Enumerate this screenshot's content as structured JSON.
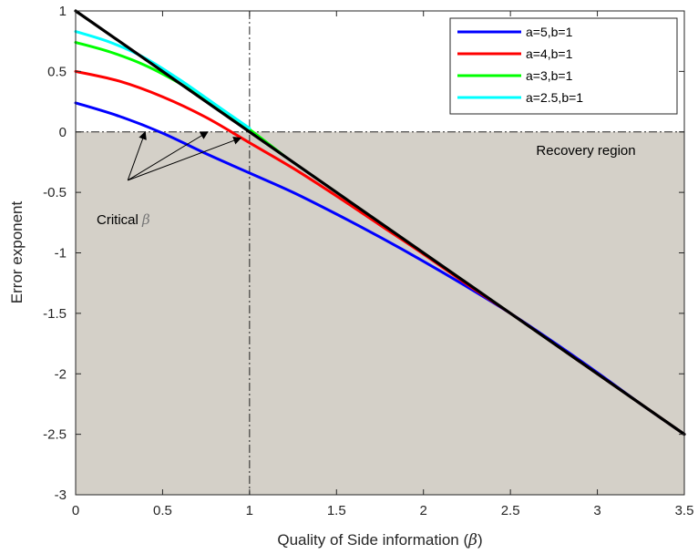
{
  "chart_data": {
    "type": "line",
    "title": "",
    "xlabel": "Quality of Side information (",
    "xlabel_symbol": "β",
    "xlabel_suffix": ")",
    "ylabel": "Error exponent",
    "xlim": [
      0,
      3.5
    ],
    "ylim": [
      -3,
      1
    ],
    "x_ticks": [
      "0",
      "0.5",
      "1",
      "1.5",
      "2",
      "2.5",
      "3",
      "3.5"
    ],
    "y_ticks": [
      "1",
      "0.5",
      "0",
      "-0.5",
      "-1",
      "-1.5",
      "-2",
      "-2.5",
      "-3"
    ],
    "grid": false,
    "legend_position": "top-right",
    "series": [
      {
        "name": "a=5,b=1",
        "color": "#0000ff",
        "x": [
          0,
          0.25,
          0.5,
          0.75,
          1,
          1.25,
          1.5,
          1.75,
          2,
          2.25,
          2.5,
          2.75,
          3,
          3.25,
          3.5
        ],
        "y": [
          0.24,
          0.13,
          -0.01,
          -0.18,
          -0.34,
          -0.5,
          -0.68,
          -0.87,
          -1.07,
          -1.28,
          -1.5,
          -1.74,
          -1.99,
          -2.25,
          -2.5
        ]
      },
      {
        "name": "a=4,b=1",
        "color": "#ff0000",
        "x": [
          0,
          0.25,
          0.5,
          0.75,
          1,
          1.25,
          1.5,
          1.75,
          2,
          2.25,
          2.5,
          2.75,
          3,
          3.25,
          3.5
        ],
        "y": [
          0.5,
          0.42,
          0.29,
          0.12,
          -0.09,
          -0.3,
          -0.53,
          -0.77,
          -1.01,
          -1.26,
          -1.5,
          -1.75,
          -2.0,
          -2.25,
          -2.5
        ]
      },
      {
        "name": "a=3,b=1",
        "color": "#00ff00",
        "x": [
          0,
          0.2,
          0.4,
          0.6,
          0.8,
          1,
          1.2
        ],
        "y": [
          0.74,
          0.66,
          0.55,
          0.4,
          0.22,
          0.02,
          -0.2
        ]
      },
      {
        "name": "a=2.5,b=1",
        "color": "#00ffff",
        "x": [
          0,
          0.2,
          0.4,
          0.6,
          0.8,
          1
        ],
        "y": [
          0.83,
          0.74,
          0.61,
          0.43,
          0.23,
          0.03
        ]
      },
      {
        "name": "",
        "color": "#000000",
        "x": [
          0,
          3.5
        ],
        "y": [
          1,
          -2.5
        ]
      }
    ],
    "reference_lines": {
      "vertical_x": 1,
      "horizontal_y": 0
    },
    "region": {
      "label": "Recovery region",
      "y_from": -3,
      "y_to": 0,
      "color": "#d4d0c8"
    },
    "annotation": {
      "text": "Critical",
      "symbol": "β",
      "arrow_tips": [
        {
          "x": 0.4,
          "y": 0.0
        },
        {
          "x": 0.76,
          "y": 0.0
        },
        {
          "x": 0.95,
          "y": -0.05
        }
      ],
      "arrow_origin": {
        "x": 0.3,
        "y": -0.4
      }
    }
  }
}
